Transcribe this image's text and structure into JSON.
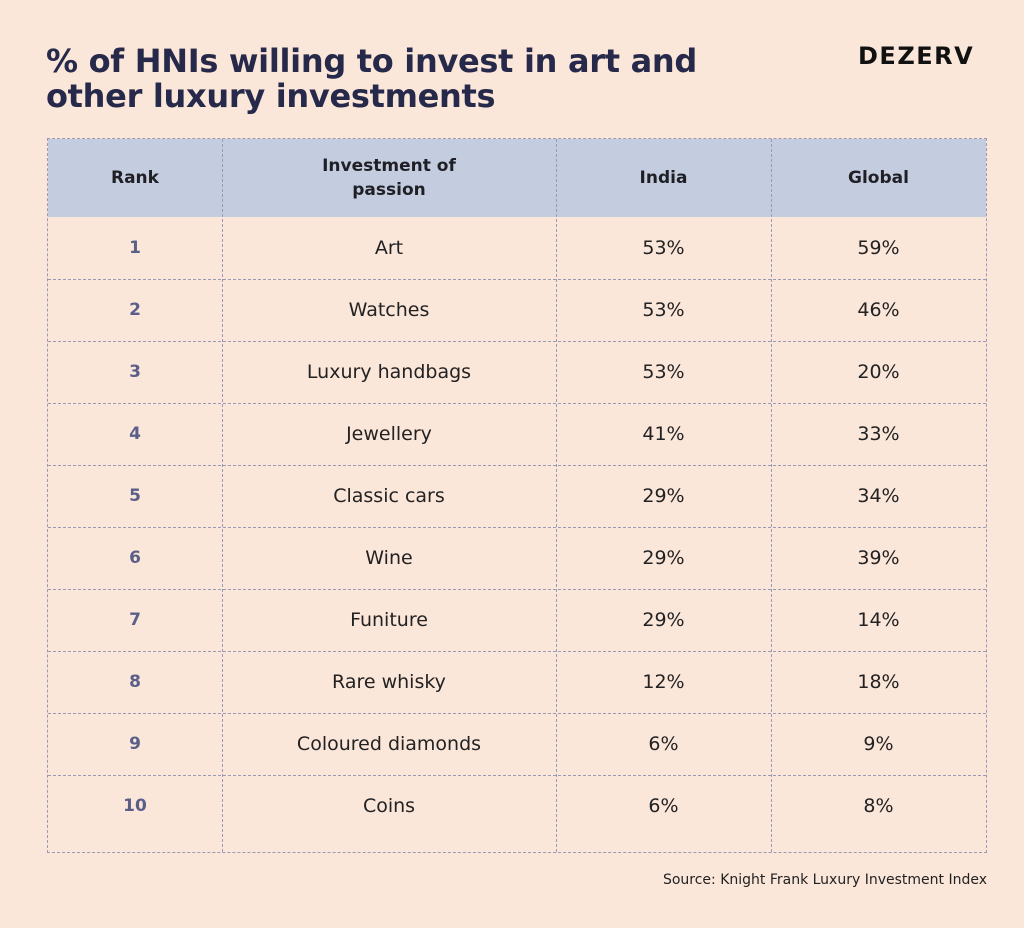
{
  "title": "% of HNIs willing to invest in art and other luxury investments",
  "brand": "DEZERV",
  "source": "Source: Knight Frank Luxury Investment Index",
  "colors": {
    "background": "#fbe6da",
    "header_background": "#c4cde0",
    "title": "#26294a",
    "rank_text": "#5a5f88",
    "grid_lines": "#9a9ab4"
  },
  "chart_data": {
    "type": "table",
    "title": "% of HNIs willing to invest in art and other luxury investments",
    "columns": [
      "Rank",
      "Investment of passion",
      "India",
      "Global"
    ],
    "rows": [
      [
        "1",
        "Art",
        "53%",
        "59%"
      ],
      [
        "2",
        "Watches",
        "53%",
        "46%"
      ],
      [
        "3",
        "Luxury handbags",
        "53%",
        "20%"
      ],
      [
        "4",
        "Jewellery",
        "41%",
        "33%"
      ],
      [
        "5",
        "Classic cars",
        "29%",
        "34%"
      ],
      [
        "6",
        "Wine",
        "29%",
        "39%"
      ],
      [
        "7",
        "Funiture",
        "29%",
        "14%"
      ],
      [
        "8",
        "Rare whisky",
        "12%",
        "18%"
      ],
      [
        "9",
        "Coloured diamonds",
        "6%",
        "9%"
      ],
      [
        "10",
        "Coins",
        "6%",
        "8%"
      ]
    ]
  }
}
